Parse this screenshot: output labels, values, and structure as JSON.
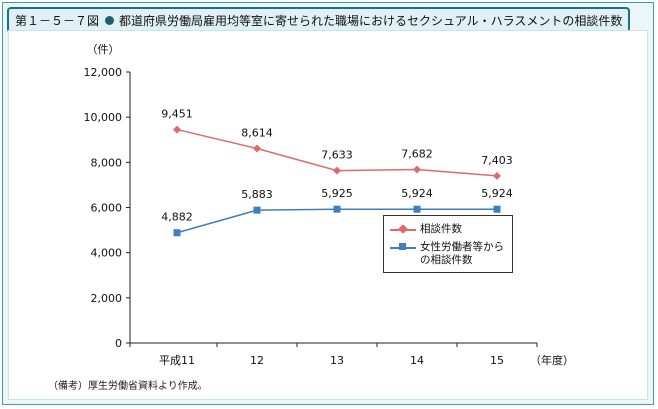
{
  "title": {
    "figure_no": "第１－５－７図",
    "text": "都道府県労働局雇用均等室に寄せられた職場におけるセクシュアル・ハラスメントの相談件数"
  },
  "note": "（備考）厚生労働省資料より作成。",
  "colors": {
    "frame_border": "#3a9fb0",
    "series1": "#e06a6a",
    "series2": "#3f7fbf"
  },
  "chart_data": {
    "type": "line",
    "ylabel": "（件）",
    "xlabel": "（年度）",
    "categories": [
      "平成11",
      "12",
      "13",
      "14",
      "15"
    ],
    "ylim": [
      0,
      12000
    ],
    "yticks": [
      0,
      2000,
      4000,
      6000,
      8000,
      10000,
      12000
    ],
    "ytick_labels": [
      "0",
      "2,000",
      "4,000",
      "6,000",
      "8,000",
      "10,000",
      "12,000"
    ],
    "grid": false,
    "legend_position": "lower-right",
    "series": [
      {
        "name": "相談件数",
        "marker": "diamond",
        "values": [
          9451,
          8614,
          7633,
          7682,
          7403
        ],
        "labels": [
          "9,451",
          "8,614",
          "7,633",
          "7,682",
          "7,403"
        ]
      },
      {
        "name": "女性労働者等からの相談件数",
        "marker": "square",
        "values": [
          4882,
          5883,
          5925,
          5924,
          5924
        ],
        "labels": [
          "4,882",
          "5,883",
          "5,925",
          "5,924",
          "5,924"
        ]
      }
    ],
    "legend": [
      {
        "label": "相談件数"
      },
      {
        "label": "女性労働者等から\nの相談件数"
      }
    ]
  }
}
